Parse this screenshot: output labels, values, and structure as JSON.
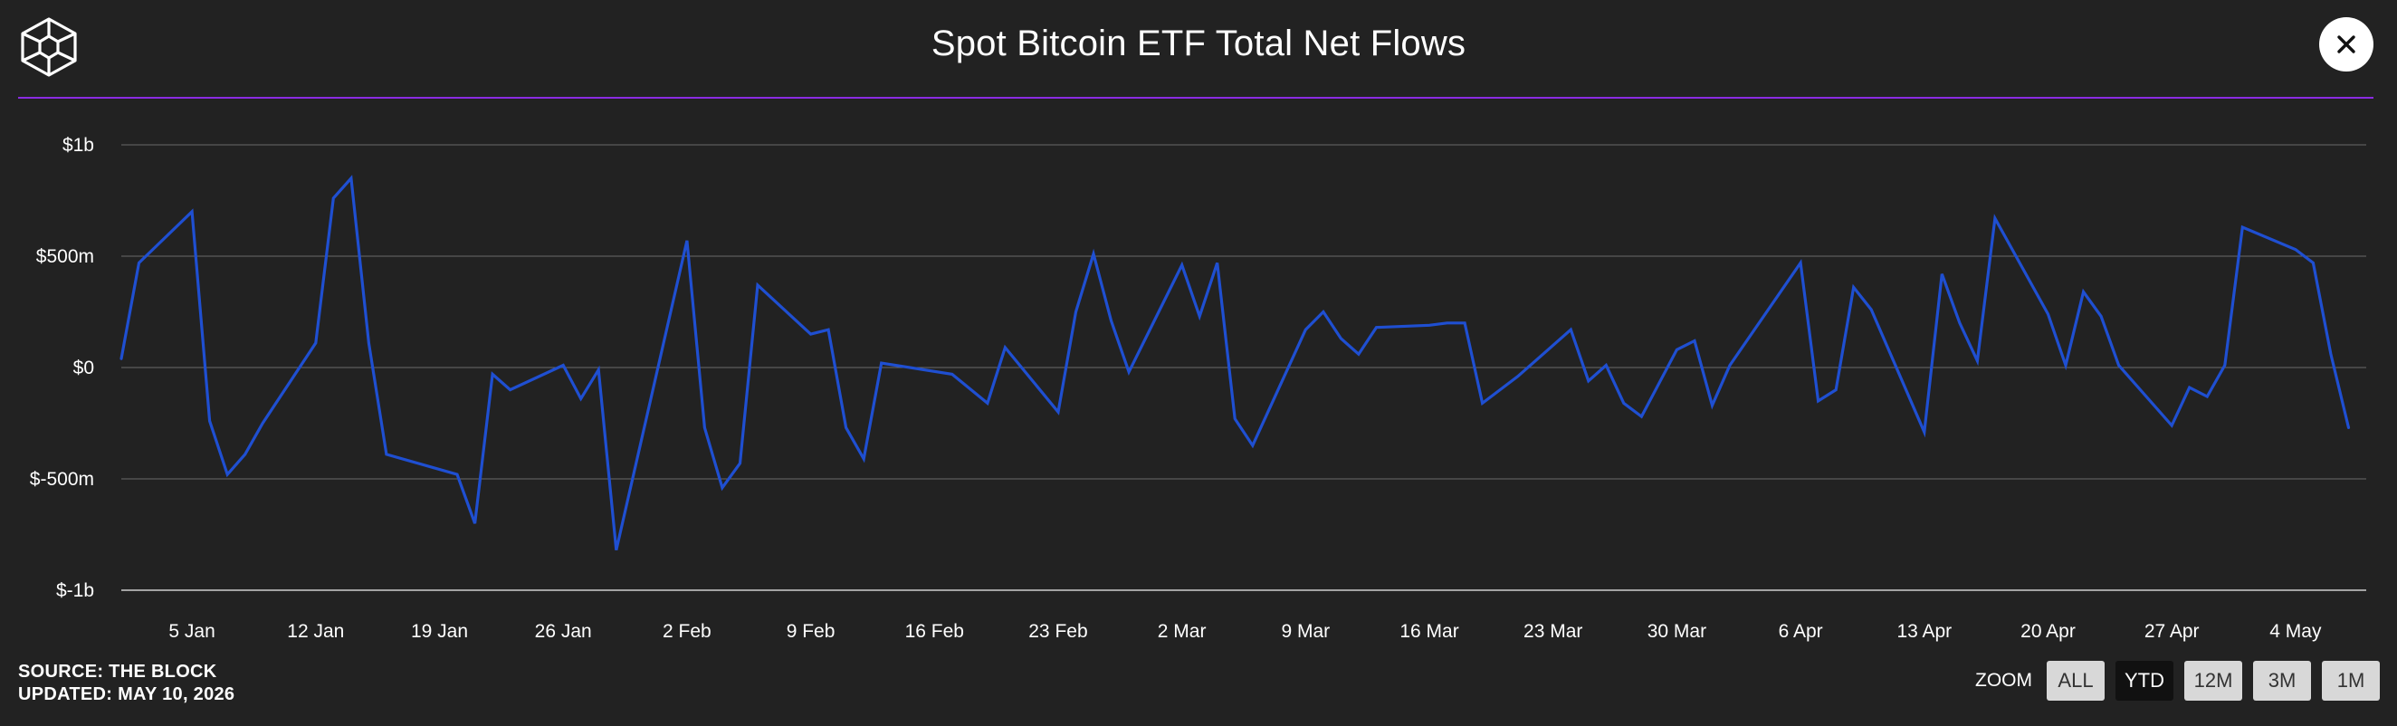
{
  "header": {
    "title": "Spot Bitcoin ETF Total Net Flows",
    "logo_icon": "the-block-cube-logo",
    "close_icon": "close-icon"
  },
  "colors": {
    "background": "#222222",
    "accent_rule": "#8a2be2",
    "series_line": "#1f4fd1",
    "gridline": "#6b6b6b"
  },
  "chart_data": {
    "type": "line",
    "title": "Spot Bitcoin ETF Total Net Flows",
    "xlabel": "",
    "ylabel": "",
    "grid": true,
    "legend": "none",
    "ylim": [
      -1000,
      1000
    ],
    "xlim": [
      "2026-01-01",
      "2026-05-08"
    ],
    "y_ticks": [
      {
        "value": 1000,
        "label": "$1b"
      },
      {
        "value": 500,
        "label": "$500m"
      },
      {
        "value": 0,
        "label": "$0"
      },
      {
        "value": -500,
        "label": "$-500m"
      },
      {
        "value": -1000,
        "label": "$-1b"
      }
    ],
    "x_ticks": [
      {
        "value": "2026-01-05",
        "label": "5 Jan"
      },
      {
        "value": "2026-01-12",
        "label": "12 Jan"
      },
      {
        "value": "2026-01-19",
        "label": "19 Jan"
      },
      {
        "value": "2026-01-26",
        "label": "26 Jan"
      },
      {
        "value": "2026-02-02",
        "label": "2 Feb"
      },
      {
        "value": "2026-02-09",
        "label": "9 Feb"
      },
      {
        "value": "2026-02-16",
        "label": "16 Feb"
      },
      {
        "value": "2026-02-23",
        "label": "23 Feb"
      },
      {
        "value": "2026-03-02",
        "label": "2 Mar"
      },
      {
        "value": "2026-03-09",
        "label": "9 Mar"
      },
      {
        "value": "2026-03-16",
        "label": "16 Mar"
      },
      {
        "value": "2026-03-23",
        "label": "23 Mar"
      },
      {
        "value": "2026-03-30",
        "label": "30 Mar"
      },
      {
        "value": "2026-04-06",
        "label": "6 Apr"
      },
      {
        "value": "2026-04-13",
        "label": "13 Apr"
      },
      {
        "value": "2026-04-20",
        "label": "20 Apr"
      },
      {
        "value": "2026-04-27",
        "label": "27 Apr"
      },
      {
        "value": "2026-05-04",
        "label": "4 May"
      }
    ],
    "unit": "USD millions",
    "series": [
      {
        "points": [
          [
            "2026-01-01",
            40
          ],
          [
            "2026-01-02",
            470
          ],
          [
            "2026-01-05",
            700
          ],
          [
            "2026-01-06",
            -240
          ],
          [
            "2026-01-07",
            -480
          ],
          [
            "2026-01-08",
            -390
          ],
          [
            "2026-01-09",
            -250
          ],
          [
            "2026-01-12",
            110
          ],
          [
            "2026-01-13",
            760
          ],
          [
            "2026-01-14",
            850
          ],
          [
            "2026-01-15",
            110
          ],
          [
            "2026-01-16",
            -390
          ],
          [
            "2026-01-20",
            -480
          ],
          [
            "2026-01-21",
            -700
          ],
          [
            "2026-01-22",
            -30
          ],
          [
            "2026-01-23",
            -100
          ],
          [
            "2026-01-26",
            10
          ],
          [
            "2026-01-27",
            -140
          ],
          [
            "2026-01-28",
            -10
          ],
          [
            "2026-01-29",
            -820
          ],
          [
            "2026-02-02",
            570
          ],
          [
            "2026-02-03",
            -270
          ],
          [
            "2026-02-04",
            -540
          ],
          [
            "2026-02-05",
            -430
          ],
          [
            "2026-02-06",
            370
          ],
          [
            "2026-02-09",
            150
          ],
          [
            "2026-02-10",
            170
          ],
          [
            "2026-02-11",
            -270
          ],
          [
            "2026-02-12",
            -410
          ],
          [
            "2026-02-13",
            20
          ],
          [
            "2026-02-17",
            -30
          ],
          [
            "2026-02-19",
            -160
          ],
          [
            "2026-02-20",
            90
          ],
          [
            "2026-02-23",
            -200
          ],
          [
            "2026-02-24",
            250
          ],
          [
            "2026-02-25",
            510
          ],
          [
            "2026-02-26",
            210
          ],
          [
            "2026-02-27",
            -20
          ],
          [
            "2026-03-02",
            460
          ],
          [
            "2026-03-03",
            230
          ],
          [
            "2026-03-04",
            470
          ],
          [
            "2026-03-05",
            -230
          ],
          [
            "2026-03-06",
            -350
          ],
          [
            "2026-03-09",
            170
          ],
          [
            "2026-03-10",
            250
          ],
          [
            "2026-03-11",
            130
          ],
          [
            "2026-03-12",
            60
          ],
          [
            "2026-03-13",
            180
          ],
          [
            "2026-03-16",
            190
          ],
          [
            "2026-03-17",
            200
          ],
          [
            "2026-03-18",
            200
          ],
          [
            "2026-03-19",
            -160
          ],
          [
            "2026-03-20",
            -100
          ],
          [
            "2026-03-21",
            -40
          ],
          [
            "2026-03-24",
            170
          ],
          [
            "2026-03-25",
            -60
          ],
          [
            "2026-03-26",
            10
          ],
          [
            "2026-03-27",
            -160
          ],
          [
            "2026-03-28",
            -220
          ],
          [
            "2026-03-30",
            80
          ],
          [
            "2026-03-31",
            120
          ],
          [
            "2026-04-01",
            -170
          ],
          [
            "2026-04-02",
            10
          ],
          [
            "2026-04-06",
            470
          ],
          [
            "2026-04-07",
            -150
          ],
          [
            "2026-04-08",
            -100
          ],
          [
            "2026-04-09",
            360
          ],
          [
            "2026-04-10",
            260
          ],
          [
            "2026-04-13",
            -290
          ],
          [
            "2026-04-14",
            420
          ],
          [
            "2026-04-15",
            200
          ],
          [
            "2026-04-16",
            30
          ],
          [
            "2026-04-17",
            670
          ],
          [
            "2026-04-20",
            240
          ],
          [
            "2026-04-21",
            10
          ],
          [
            "2026-04-22",
            340
          ],
          [
            "2026-04-23",
            230
          ],
          [
            "2026-04-24",
            10
          ],
          [
            "2026-04-27",
            -260
          ],
          [
            "2026-04-28",
            -90
          ],
          [
            "2026-04-29",
            -130
          ],
          [
            "2026-04-30",
            10
          ],
          [
            "2026-05-01",
            630
          ],
          [
            "2026-05-04",
            530
          ],
          [
            "2026-05-05",
            470
          ],
          [
            "2026-05-06",
            60
          ],
          [
            "2026-05-07",
            -270
          ]
        ]
      }
    ]
  },
  "footer": {
    "source": "SOURCE: THE BLOCK",
    "updated": "UPDATED: MAY 10, 2026"
  },
  "zoom": {
    "label": "ZOOM",
    "options": [
      {
        "label": "ALL",
        "active": false
      },
      {
        "label": "YTD",
        "active": true
      },
      {
        "label": "12M",
        "active": false
      },
      {
        "label": "3M",
        "active": false
      },
      {
        "label": "1M",
        "active": false
      }
    ]
  }
}
